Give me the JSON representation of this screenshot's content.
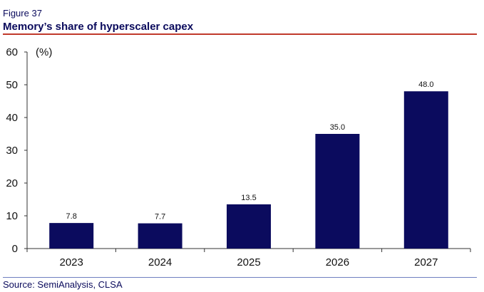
{
  "figure_label": "Figure 37",
  "title": "Memory’s share of hyperscaler capex",
  "source": "Source: SemiAnalysis, CLSA",
  "colors": {
    "bar": "#0b0b5e",
    "title": "#0a0a5c",
    "rule": "#c0392b"
  },
  "chart_data": {
    "type": "bar",
    "categories": [
      "2023",
      "2024",
      "2025",
      "2026",
      "2027"
    ],
    "values": [
      7.8,
      7.7,
      13.5,
      35.0,
      48.0
    ],
    "data_labels": [
      "7.8",
      "7.7",
      "13.5",
      "35.0",
      "48.0"
    ],
    "ylabel": "(%)",
    "ylim": [
      0,
      60
    ],
    "yticks": [
      0,
      10,
      20,
      30,
      40,
      50,
      60
    ],
    "grid": false,
    "legend": "none"
  }
}
